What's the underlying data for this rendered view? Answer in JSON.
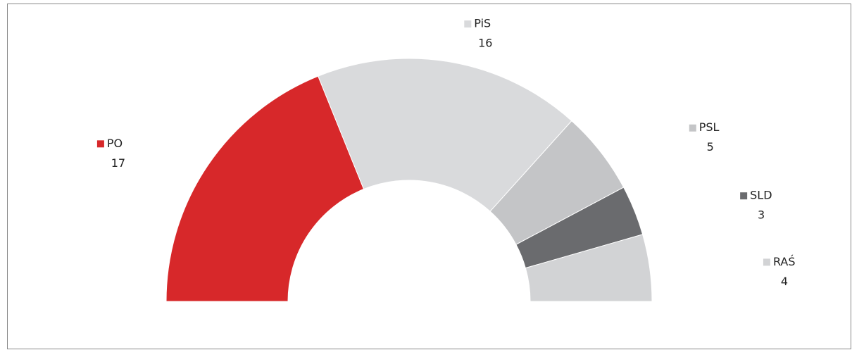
{
  "chart_data": {
    "type": "semi-donut",
    "categories": [
      "PO",
      "PiS",
      "PSL",
      "SLD",
      "RAŚ"
    ],
    "values": [
      17,
      16,
      5,
      3,
      4
    ],
    "colors": [
      "#d7282a",
      "#d9dadc",
      "#c4c5c7",
      "#6a6b6e",
      "#d2d3d5"
    ]
  }
}
